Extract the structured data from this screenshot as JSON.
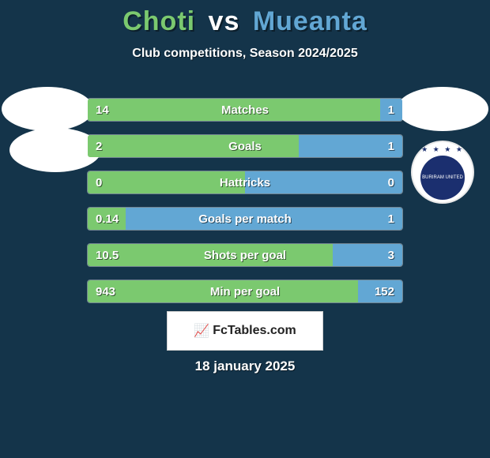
{
  "title": {
    "player1": "Choti",
    "vs": "vs",
    "player2": "Mueanta"
  },
  "subtitle": "Club competitions, Season 2024/2025",
  "colors": {
    "background": "#14344a",
    "left": "#7bc96f",
    "right": "#62a7d4",
    "text": "#ffffff"
  },
  "bars": [
    {
      "label": "Matches",
      "left_value": "14",
      "right_value": "1",
      "left_pct": 93,
      "right_pct": 7
    },
    {
      "label": "Goals",
      "left_value": "2",
      "right_value": "1",
      "left_pct": 67,
      "right_pct": 33
    },
    {
      "label": "Hattricks",
      "left_value": "0",
      "right_value": "0",
      "left_pct": 50,
      "right_pct": 50
    },
    {
      "label": "Goals per match",
      "left_value": "0.14",
      "right_value": "1",
      "left_pct": 12,
      "right_pct": 88
    },
    {
      "label": "Shots per goal",
      "left_value": "10.5",
      "right_value": "3",
      "left_pct": 78,
      "right_pct": 22
    },
    {
      "label": "Min per goal",
      "left_value": "943",
      "right_value": "152",
      "left_pct": 86,
      "right_pct": 14
    }
  ],
  "brand": {
    "label": "FcTables.com"
  },
  "date": "18 january 2025",
  "crest": {
    "top_text": "★ ★ ★ ★",
    "label": "BURIRAM UNITED"
  }
}
